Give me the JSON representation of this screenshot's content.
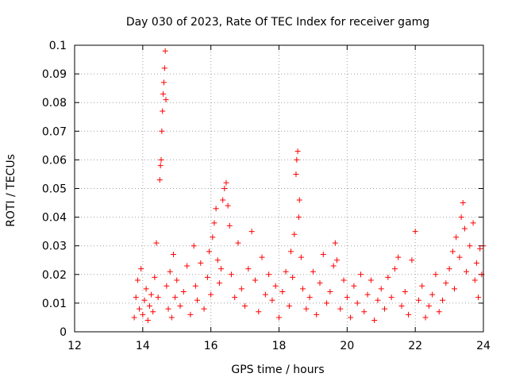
{
  "chart_data": {
    "type": "scatter",
    "title": "Day 030 of 2023, Rate Of TEC Index for receiver gamg",
    "xlabel": "GPS time / hours",
    "ylabel": "ROTI / TECUs",
    "xlim": [
      12,
      24
    ],
    "ylim": [
      0,
      0.1
    ],
    "x_ticks": [
      "12",
      "14",
      "16",
      "18",
      "20",
      "22",
      "24"
    ],
    "y_ticks": [
      "0",
      "0.01",
      "0.02",
      "0.03",
      "0.04",
      "0.05",
      "0.06",
      "0.07",
      "0.08",
      "0.09",
      "0.1"
    ],
    "grid": true,
    "marker": "+",
    "marker_color": "#ff0000",
    "series": [
      {
        "name": "gamg",
        "points": [
          [
            13.75,
            0.005
          ],
          [
            13.8,
            0.012
          ],
          [
            13.85,
            0.018
          ],
          [
            13.9,
            0.008
          ],
          [
            13.95,
            0.022
          ],
          [
            14.0,
            0.006
          ],
          [
            14.05,
            0.011
          ],
          [
            14.1,
            0.015
          ],
          [
            14.15,
            0.004
          ],
          [
            14.2,
            0.009
          ],
          [
            14.25,
            0.013
          ],
          [
            14.3,
            0.007
          ],
          [
            14.35,
            0.019
          ],
          [
            14.4,
            0.031
          ],
          [
            14.45,
            0.012
          ],
          [
            14.5,
            0.053
          ],
          [
            14.52,
            0.058
          ],
          [
            14.54,
            0.06
          ],
          [
            14.56,
            0.07
          ],
          [
            14.58,
            0.077
          ],
          [
            14.6,
            0.083
          ],
          [
            14.62,
            0.087
          ],
          [
            14.64,
            0.092
          ],
          [
            14.66,
            0.098
          ],
          [
            14.68,
            0.081
          ],
          [
            14.7,
            0.016
          ],
          [
            14.75,
            0.008
          ],
          [
            14.8,
            0.021
          ],
          [
            14.85,
            0.005
          ],
          [
            14.9,
            0.027
          ],
          [
            14.95,
            0.012
          ],
          [
            15.0,
            0.018
          ],
          [
            15.1,
            0.009
          ],
          [
            15.2,
            0.014
          ],
          [
            15.3,
            0.023
          ],
          [
            15.4,
            0.006
          ],
          [
            15.5,
            0.03
          ],
          [
            15.55,
            0.016
          ],
          [
            15.6,
            0.011
          ],
          [
            15.7,
            0.024
          ],
          [
            15.8,
            0.008
          ],
          [
            15.9,
            0.019
          ],
          [
            15.95,
            0.028
          ],
          [
            16.0,
            0.013
          ],
          [
            16.05,
            0.033
          ],
          [
            16.1,
            0.038
          ],
          [
            16.15,
            0.043
          ],
          [
            16.2,
            0.025
          ],
          [
            16.25,
            0.017
          ],
          [
            16.3,
            0.022
          ],
          [
            16.35,
            0.046
          ],
          [
            16.4,
            0.05
          ],
          [
            16.45,
            0.052
          ],
          [
            16.5,
            0.044
          ],
          [
            16.55,
            0.037
          ],
          [
            16.6,
            0.02
          ],
          [
            16.7,
            0.012
          ],
          [
            16.8,
            0.031
          ],
          [
            16.9,
            0.015
          ],
          [
            17.0,
            0.009
          ],
          [
            17.1,
            0.022
          ],
          [
            17.2,
            0.035
          ],
          [
            17.3,
            0.018
          ],
          [
            17.4,
            0.007
          ],
          [
            17.5,
            0.026
          ],
          [
            17.6,
            0.013
          ],
          [
            17.7,
            0.02
          ],
          [
            17.8,
            0.011
          ],
          [
            17.9,
            0.016
          ],
          [
            18.0,
            0.005
          ],
          [
            18.1,
            0.014
          ],
          [
            18.2,
            0.021
          ],
          [
            18.3,
            0.009
          ],
          [
            18.35,
            0.028
          ],
          [
            18.4,
            0.019
          ],
          [
            18.45,
            0.034
          ],
          [
            18.5,
            0.055
          ],
          [
            18.52,
            0.06
          ],
          [
            18.55,
            0.063
          ],
          [
            18.58,
            0.04
          ],
          [
            18.6,
            0.046
          ],
          [
            18.65,
            0.026
          ],
          [
            18.7,
            0.015
          ],
          [
            18.8,
            0.008
          ],
          [
            18.9,
            0.012
          ],
          [
            19.0,
            0.021
          ],
          [
            19.1,
            0.006
          ],
          [
            19.2,
            0.017
          ],
          [
            19.3,
            0.027
          ],
          [
            19.4,
            0.01
          ],
          [
            19.5,
            0.014
          ],
          [
            19.6,
            0.023
          ],
          [
            19.65,
            0.031
          ],
          [
            19.7,
            0.025
          ],
          [
            19.8,
            0.008
          ],
          [
            19.9,
            0.018
          ],
          [
            20.0,
            0.012
          ],
          [
            20.1,
            0.005
          ],
          [
            20.2,
            0.016
          ],
          [
            20.3,
            0.01
          ],
          [
            20.4,
            0.02
          ],
          [
            20.5,
            0.007
          ],
          [
            20.6,
            0.013
          ],
          [
            20.7,
            0.018
          ],
          [
            20.8,
            0.004
          ],
          [
            20.9,
            0.011
          ],
          [
            21.0,
            0.015
          ],
          [
            21.1,
            0.008
          ],
          [
            21.2,
            0.019
          ],
          [
            21.3,
            0.012
          ],
          [
            21.4,
            0.022
          ],
          [
            21.5,
            0.026
          ],
          [
            21.6,
            0.009
          ],
          [
            21.7,
            0.014
          ],
          [
            21.8,
            0.006
          ],
          [
            21.9,
            0.025
          ],
          [
            22.0,
            0.035
          ],
          [
            22.1,
            0.011
          ],
          [
            22.2,
            0.016
          ],
          [
            22.3,
            0.005
          ],
          [
            22.4,
            0.009
          ],
          [
            22.5,
            0.013
          ],
          [
            22.6,
            0.02
          ],
          [
            22.7,
            0.007
          ],
          [
            22.8,
            0.011
          ],
          [
            22.9,
            0.017
          ],
          [
            23.0,
            0.022
          ],
          [
            23.1,
            0.028
          ],
          [
            23.15,
            0.015
          ],
          [
            23.2,
            0.033
          ],
          [
            23.3,
            0.026
          ],
          [
            23.35,
            0.04
          ],
          [
            23.4,
            0.045
          ],
          [
            23.45,
            0.036
          ],
          [
            23.5,
            0.021
          ],
          [
            23.6,
            0.03
          ],
          [
            23.7,
            0.038
          ],
          [
            23.75,
            0.018
          ],
          [
            23.8,
            0.024
          ],
          [
            23.85,
            0.012
          ],
          [
            23.9,
            0.029
          ],
          [
            23.95,
            0.02
          ],
          [
            24.0,
            0.03
          ]
        ]
      }
    ]
  }
}
